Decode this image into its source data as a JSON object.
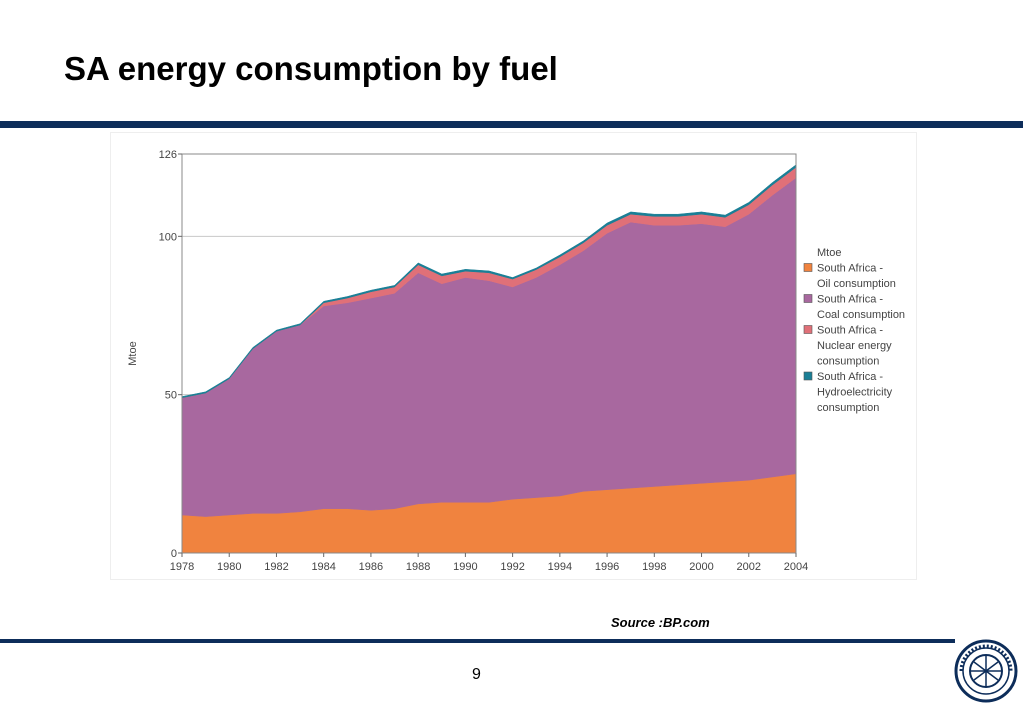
{
  "slide": {
    "title": "SA energy consumption by fuel",
    "source": "Source :BP.com",
    "page_number": "9"
  },
  "chart_data": {
    "type": "area",
    "stacked": true,
    "ylabel": "Mtoe",
    "xlabel": "",
    "ylim": [
      0,
      126
    ],
    "xlim": [
      1978,
      2004
    ],
    "yticks": [
      0,
      50,
      100,
      126
    ],
    "xticks": [
      1978,
      1980,
      1982,
      1984,
      1986,
      1988,
      1990,
      1992,
      1994,
      1996,
      1998,
      2000,
      2002,
      2004
    ],
    "grid": "horizontal",
    "legend_position": "right",
    "legend_title": "Mtoe",
    "x": [
      1978,
      1979,
      1980,
      1981,
      1982,
      1983,
      1984,
      1985,
      1986,
      1987,
      1988,
      1989,
      1990,
      1991,
      1992,
      1993,
      1994,
      1995,
      1996,
      1997,
      1998,
      1999,
      2000,
      2001,
      2002,
      2003,
      2004
    ],
    "series": [
      {
        "name": "South Africa - Oil consumption",
        "color": "#f0833f",
        "values": [
          12,
          11.5,
          12,
          12.5,
          12.5,
          13,
          14,
          14,
          13.5,
          14,
          15.5,
          16,
          16,
          16,
          17,
          17.5,
          18,
          19.5,
          20,
          20.5,
          21,
          21.5,
          22,
          22.5,
          23,
          24,
          25
        ]
      },
      {
        "name": "South Africa - Coal consumption",
        "color": "#a8689f",
        "values": [
          37,
          39,
          43,
          52,
          57.5,
          59,
          64,
          65,
          67,
          68,
          73,
          69,
          71,
          70,
          67,
          69.5,
          73,
          76,
          81,
          84,
          82.5,
          82,
          82,
          80.5,
          84,
          89,
          93.5
        ]
      },
      {
        "name": "South Africa - Nuclear energy consumption",
        "color": "#e07078",
        "values": [
          0,
          0,
          0,
          0,
          0,
          0,
          1,
          1.5,
          2,
          2,
          2.5,
          2.5,
          2,
          2.5,
          2.5,
          2.5,
          2.5,
          2.5,
          2.5,
          2.5,
          2.8,
          2.8,
          3,
          3,
          3,
          3.2,
          3.3
        ]
      },
      {
        "name": "South Africa - Hydroelectricity consumption",
        "color": "#1a7f96",
        "values": [
          0.4,
          0.4,
          0.4,
          0.4,
          0.4,
          0.4,
          0.5,
          0.5,
          0.5,
          0.5,
          0.6,
          0.6,
          0.6,
          0.6,
          0.5,
          0.5,
          0.6,
          0.6,
          0.7,
          0.7,
          0.7,
          0.7,
          0.7,
          0.7,
          0.7,
          0.8,
          0.8
        ]
      }
    ]
  }
}
